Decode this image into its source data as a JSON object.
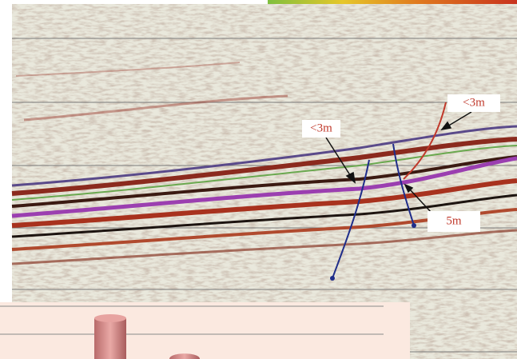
{
  "annotations": [
    {
      "label": "<3m"
    },
    {
      "label": "<3m"
    },
    {
      "label": "5m"
    }
  ]
}
